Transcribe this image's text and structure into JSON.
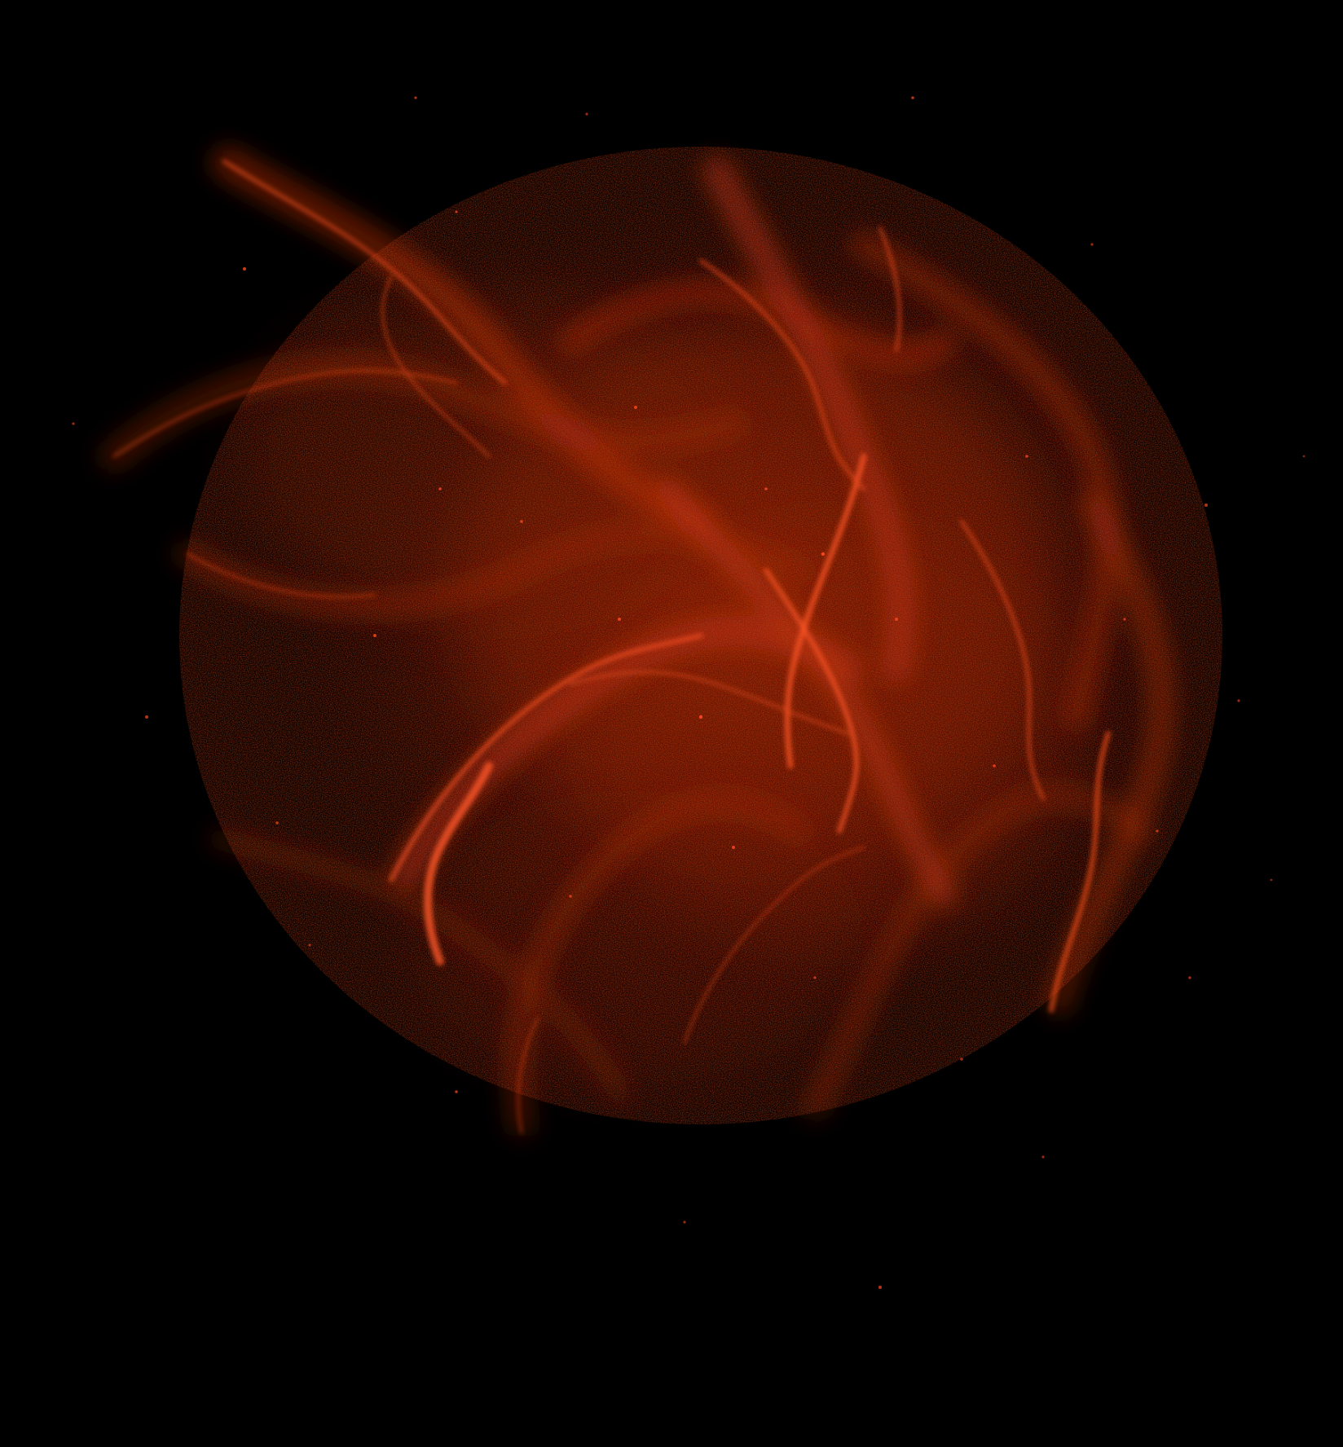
{
  "image": {
    "subject": "abstract-red-particle-smoke",
    "colors": {
      "background": "#000000",
      "smoke_deep": "#5a1204",
      "smoke_mid": "#b8300e",
      "smoke_bright": "#ff5a2a",
      "particle": "#ff4a1c"
    }
  }
}
